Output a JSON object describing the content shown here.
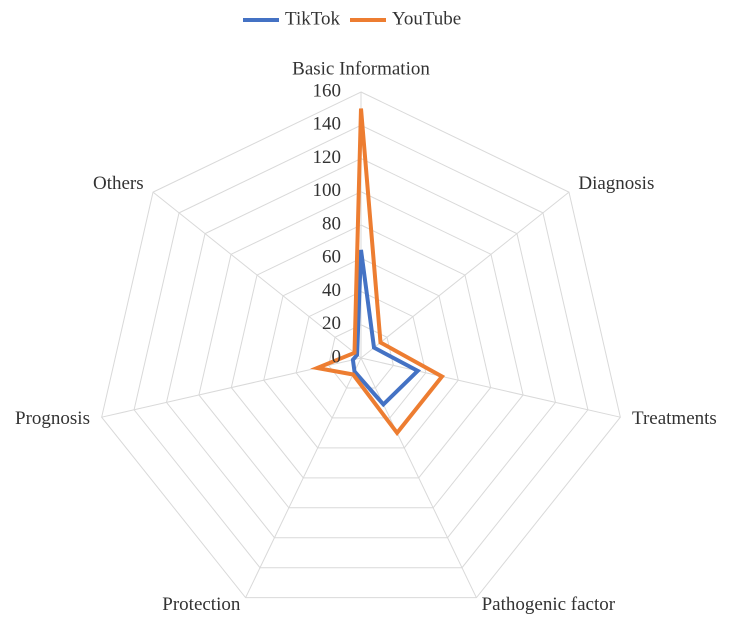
{
  "chart_data": {
    "type": "radar",
    "categories": [
      "Basic Information",
      "Diagnosis",
      "Treatments",
      "Pathogenic factor",
      "Protection",
      "Prognosis",
      "Others"
    ],
    "series": [
      {
        "name": "TikTok",
        "color": "#4472c4",
        "values": [
          65,
          10,
          35,
          31,
          9,
          5,
          3
        ]
      },
      {
        "name": "YouTube",
        "color": "#ed7d31",
        "values": [
          150,
          15,
          50,
          50,
          11,
          27,
          5
        ]
      }
    ],
    "ylim": [
      0,
      160
    ],
    "yticks": [
      0,
      20,
      40,
      60,
      80,
      100,
      120,
      140,
      160
    ],
    "grid": true,
    "legend": "top"
  }
}
